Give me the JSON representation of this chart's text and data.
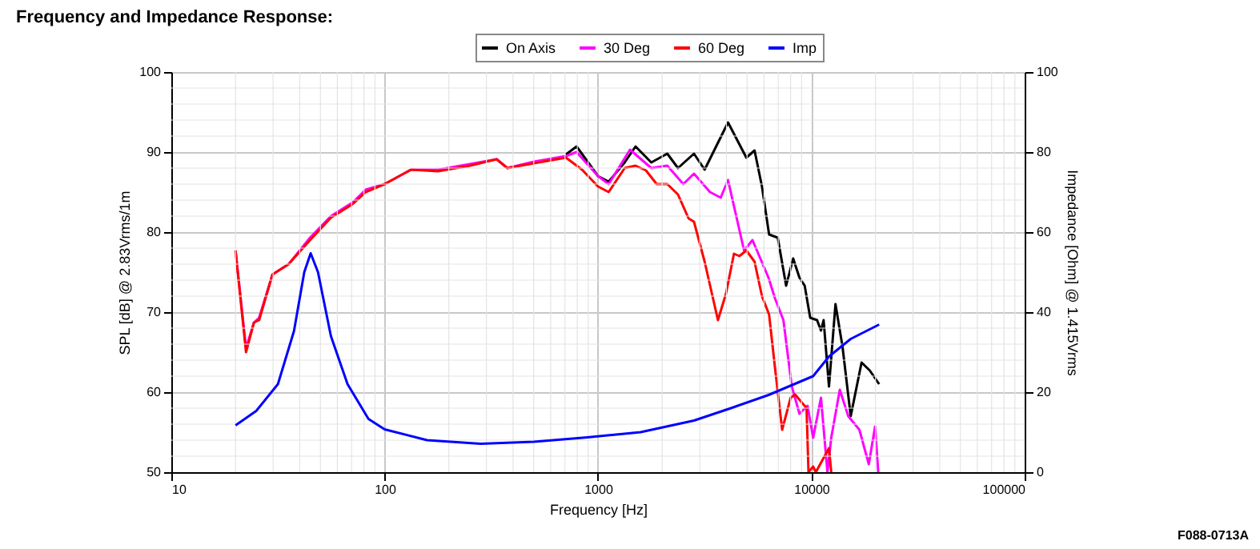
{
  "chart_data": {
    "type": "line",
    "title": "Frequency and Impedance Response:",
    "xlabel": "Frequency [Hz]",
    "ylabel": "SPL [dB] @ 2.83Vrms/1m",
    "y2label": "Impedance [Ohm] @ 1.415Vrms",
    "log": "x",
    "xlim": [
      10,
      100000
    ],
    "xticks": [
      10,
      100,
      1000,
      10000,
      100000
    ],
    "ylim": [
      50,
      100
    ],
    "yticks": [
      50,
      60,
      70,
      80,
      90,
      100
    ],
    "y2lim": [
      0,
      100
    ],
    "y2ticks": [
      0,
      20,
      40,
      60,
      80,
      100
    ],
    "grid": true,
    "legend": "top",
    "line_style": "solid",
    "marker": "none",
    "annotations": [
      "F088-0713A"
    ],
    "series": [
      {
        "name": "On Axis",
        "color": "#000000",
        "x": [
          708,
          794,
          1000,
          1122,
          1334,
          1500,
          1778,
          2113,
          2371,
          2818,
          3162,
          4070,
          4960,
          5420,
          5870,
          6340,
          6960,
          7620,
          8220,
          8800,
          9310,
          9880,
          10640,
          11100,
          11420,
          12100,
          12980,
          14000,
          15300,
          17200,
          18800,
          20800
        ],
        "values": [
          89.7,
          90.7,
          87,
          86.3,
          88.7,
          90.7,
          88.7,
          89.8,
          88,
          89.8,
          87.8,
          93.7,
          89.3,
          90.2,
          85.7,
          79.7,
          79.3,
          73.3,
          76.7,
          74.3,
          73.3,
          69.3,
          69,
          67.7,
          69,
          60.7,
          71,
          65.7,
          57,
          63.7,
          62.7,
          61
        ]
      },
      {
        "name": "30 Deg",
        "color": "#ff00ff",
        "x": [
          20,
          22.4,
          24.4,
          25.8,
          29.8,
          35.5,
          44.7,
          56,
          70.8,
          81.5,
          100,
          133,
          178,
          251,
          335,
          376,
          501,
          708,
          794,
          1000,
          1122,
          1413,
          1778,
          2113,
          2512,
          2818,
          3350,
          3760,
          4070,
          4840,
          5300,
          6300,
          6760,
          7400,
          8100,
          8800,
          9600,
          10200,
          11100,
          11900,
          12400,
          13600,
          14900,
          16800,
          18600,
          19900,
          20600
        ],
        "values": [
          77.7,
          65.5,
          68.7,
          69.3,
          74.7,
          76,
          79.3,
          82,
          83.7,
          85.3,
          86,
          87.8,
          87.8,
          88.5,
          89.1,
          88,
          88.8,
          89.5,
          90,
          87,
          86,
          90.3,
          88,
          88.3,
          86,
          87.3,
          85,
          84.3,
          86.5,
          77.7,
          79,
          74.3,
          71.7,
          69,
          60.7,
          57.3,
          58.3,
          54.3,
          59.3,
          50,
          54.3,
          60.3,
          57,
          55.3,
          51,
          55.7,
          50
        ]
      },
      {
        "name": "60 Deg",
        "color": "#ff0000",
        "x": [
          20,
          22.4,
          24.4,
          25.8,
          29.8,
          35.5,
          44.7,
          56,
          70.8,
          81.5,
          100,
          133,
          178,
          251,
          335,
          376,
          501,
          708,
          842,
          1000,
          1122,
          1334,
          1500,
          1679,
          1884,
          2113,
          2371,
          2660,
          2818,
          3162,
          3650,
          3981,
          4340,
          4600,
          4960,
          5420,
          5870,
          6340,
          6760,
          7300,
          8000,
          8400,
          9500,
          9700,
          10200,
          10500,
          12100,
          12400
        ],
        "values": [
          77.7,
          65,
          68.7,
          69,
          74.7,
          76,
          79,
          81.8,
          83.5,
          85,
          86,
          87.8,
          87.6,
          88.3,
          89.1,
          88,
          88.6,
          89.3,
          87.8,
          85.7,
          85,
          88,
          88.3,
          87.7,
          86,
          86,
          84.7,
          81.7,
          81.3,
          76.3,
          69,
          72.3,
          77.3,
          77,
          77.7,
          76.3,
          72,
          69.7,
          63,
          55.3,
          59.3,
          59.7,
          58,
          50,
          50.7,
          50,
          53,
          50
        ]
      },
      {
        "name": "Imp",
        "color": "#0000ff",
        "axis": "y2",
        "x": [
          20,
          25,
          31.6,
          37.6,
          42,
          45,
          48.7,
          56,
          67,
          84,
          100,
          158,
          282,
          501,
          891,
          1585,
          2818,
          4200,
          6310,
          10200,
          12100,
          15300,
          20800
        ],
        "values": [
          11.7,
          15.3,
          22,
          35.3,
          50,
          54.7,
          50,
          34,
          22,
          13.3,
          10.7,
          8,
          7.1,
          7.6,
          8.7,
          10,
          12.9,
          16,
          19.3,
          24,
          28.9,
          33.3,
          36.9
        ]
      }
    ]
  }
}
